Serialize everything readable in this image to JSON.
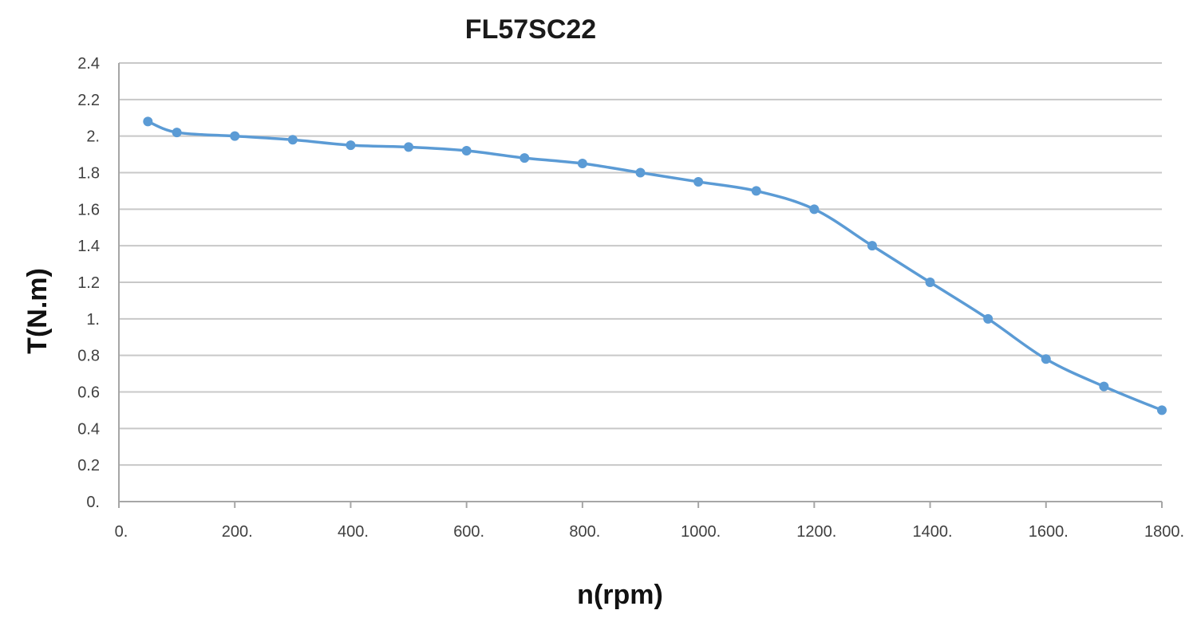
{
  "chart_data": {
    "type": "line",
    "title": "FL57SC22",
    "xlabel": "n(rpm)",
    "ylabel": "T(N.m)",
    "xlim": [
      0,
      1800
    ],
    "ylim": [
      0,
      2.4
    ],
    "x_ticks": [
      0,
      200,
      400,
      600,
      800,
      1000,
      1200,
      1400,
      1600,
      1800
    ],
    "x_tick_labels": [
      "0.",
      "200.",
      "400.",
      "600.",
      "800.",
      "1000.",
      "1200.",
      "1400.",
      "1600.",
      "1800."
    ],
    "y_ticks": [
      0,
      0.2,
      0.4,
      0.6,
      0.8,
      1,
      1.2,
      1.4,
      1.6,
      1.8,
      2,
      2.2,
      2.4
    ],
    "y_tick_labels": [
      "0.",
      "0.2",
      "0.4",
      "0.6",
      "0.8",
      "1.",
      "1.2",
      "1.4",
      "1.6",
      "1.8",
      "2.",
      "2.2",
      "2.4"
    ],
    "grid": true,
    "legend": "none",
    "series": [
      {
        "color": "#5b9bd5",
        "x": [
          50,
          100,
          200,
          300,
          400,
          500,
          600,
          700,
          800,
          900,
          1000,
          1100,
          1200,
          1300,
          1400,
          1500,
          1600,
          1700,
          1800
        ],
        "y": [
          2.08,
          2.02,
          2.0,
          1.98,
          1.95,
          1.94,
          1.92,
          1.88,
          1.85,
          1.8,
          1.75,
          1.7,
          1.6,
          1.4,
          1.2,
          1.0,
          0.78,
          0.63,
          0.5
        ]
      }
    ]
  }
}
